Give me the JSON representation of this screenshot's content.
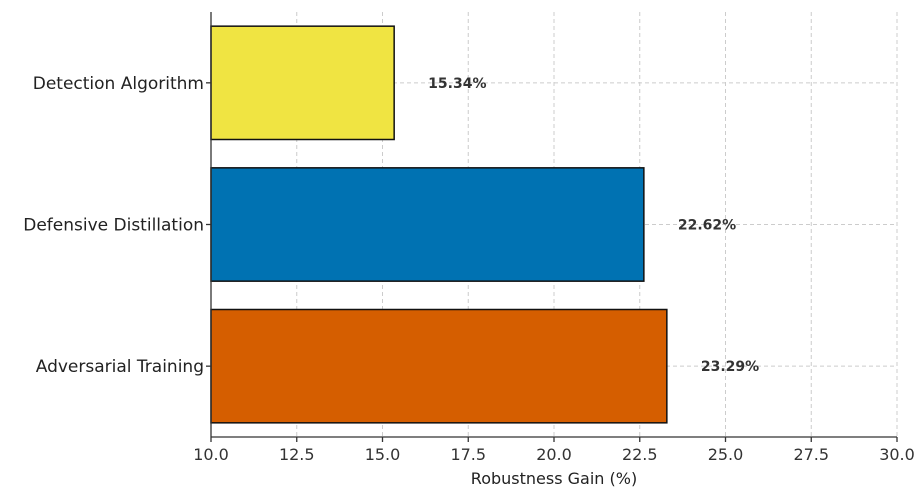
{
  "chart_data": {
    "type": "bar",
    "orientation": "horizontal",
    "categories": [
      "Adversarial Training",
      "Defensive Distillation",
      "Detection Algorithm"
    ],
    "values": [
      23.29,
      22.62,
      15.34
    ],
    "value_labels": [
      "23.29%",
      "22.62%",
      "15.34%"
    ],
    "colors": [
      "#D55E00",
      "#0072B2",
      "#F0E442"
    ],
    "xlabel": "Robustness Gain (%)",
    "ylabel": "",
    "title": "",
    "xlim": [
      10.0,
      30.0
    ],
    "xticks": [
      "10.0",
      "12.5",
      "15.0",
      "17.5",
      "20.0",
      "22.5",
      "25.0",
      "27.5",
      "30.0"
    ],
    "grid": true,
    "legend": null
  }
}
